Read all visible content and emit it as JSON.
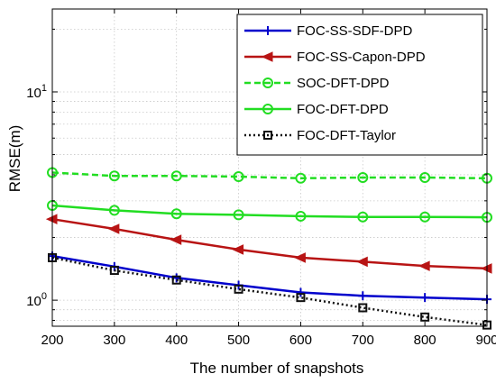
{
  "chart_data": {
    "type": "line",
    "xlabel": "The number of snapshots",
    "ylabel": "RMSE(m)",
    "xlim": [
      200,
      900
    ],
    "ylim": [
      0.75,
      25
    ],
    "yscale": "log",
    "grid": true,
    "legend_position": "top-right",
    "x": [
      200,
      300,
      400,
      500,
      600,
      700,
      800,
      900
    ],
    "x_ticks": [
      "200",
      "300",
      "400",
      "500",
      "600",
      "700",
      "800",
      "900"
    ],
    "y_ticks": [
      {
        "value": 1,
        "base": "10",
        "exp": "0"
      },
      {
        "value": 10,
        "base": "10",
        "exp": "1"
      }
    ],
    "series": [
      {
        "name": "FOC-SS-SDF-DPD",
        "color": "#0000cc",
        "marker": "plus",
        "dash": "solid",
        "values": [
          1.63,
          1.45,
          1.28,
          1.18,
          1.09,
          1.05,
          1.03,
          1.01
        ]
      },
      {
        "name": "FOC-SS-Capon-DPD",
        "color": "#b81414",
        "marker": "triangle-left",
        "dash": "solid",
        "values": [
          2.45,
          2.2,
          1.95,
          1.75,
          1.6,
          1.53,
          1.46,
          1.42
        ]
      },
      {
        "name": "SOC-DFT-DPD",
        "color": "#22dd22",
        "marker": "circle",
        "dash": "dashed",
        "values": [
          4.1,
          3.95,
          3.95,
          3.92,
          3.85,
          3.88,
          3.88,
          3.85
        ]
      },
      {
        "name": "FOC-DFT-DPD",
        "color": "#22dd22",
        "marker": "circle",
        "dash": "solid",
        "values": [
          2.85,
          2.7,
          2.6,
          2.57,
          2.53,
          2.51,
          2.51,
          2.5
        ]
      },
      {
        "name": "FOC-DFT-Taylor",
        "color": "#111111",
        "marker": "square",
        "dash": "dotted",
        "values": [
          1.6,
          1.39,
          1.25,
          1.13,
          1.03,
          0.92,
          0.83,
          0.76
        ]
      }
    ]
  }
}
